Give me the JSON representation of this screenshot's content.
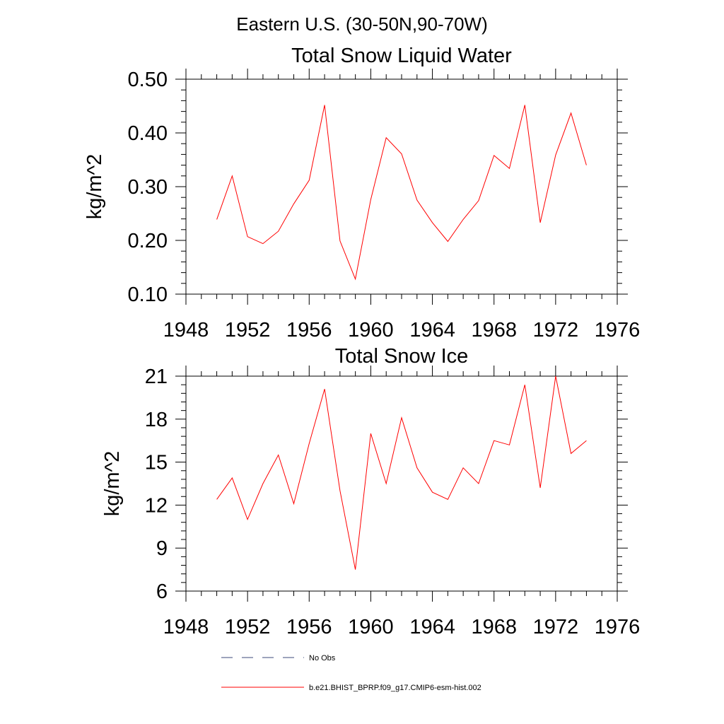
{
  "figure": {
    "suptitle": "Eastern U.S. (30-50N,90-70W)"
  },
  "chart_data": [
    {
      "type": "line",
      "title": "Total Snow Liquid Water",
      "xlabel": "",
      "ylabel": "kg/m^2",
      "xlim": [
        1948,
        1976
      ],
      "ylim": [
        0.1,
        0.5
      ],
      "xticks": [
        1948,
        1952,
        1956,
        1960,
        1964,
        1968,
        1972,
        1976
      ],
      "xtick_labels": [
        "1948",
        "1952",
        "1956",
        "1960",
        "1964",
        "1968",
        "1972",
        "1976"
      ],
      "yticks": [
        0.1,
        0.2,
        0.3,
        0.4,
        0.5
      ],
      "ytick_labels": [
        "0.10",
        "0.20",
        "0.30",
        "0.40",
        "0.50"
      ],
      "grid": false,
      "series": [
        {
          "name": "b.e21.BHIST_BPRP.f09_g17.CMIP6-esm-hist.002",
          "color": "#ff0000",
          "x": [
            1950,
            1951,
            1952,
            1953,
            1954,
            1955,
            1956,
            1957,
            1958,
            1959,
            1960,
            1961,
            1962,
            1963,
            1964,
            1965,
            1966,
            1967,
            1968,
            1969,
            1970,
            1971,
            1972,
            1973,
            1974
          ],
          "y": [
            0.239,
            0.32,
            0.207,
            0.194,
            0.217,
            0.268,
            0.312,
            0.452,
            0.199,
            0.128,
            0.276,
            0.391,
            0.361,
            0.275,
            0.233,
            0.198,
            0.239,
            0.274,
            0.358,
            0.334,
            0.452,
            0.233,
            0.359,
            0.437,
            0.34
          ]
        }
      ]
    },
    {
      "type": "line",
      "title": "Total Snow Ice",
      "xlabel": "",
      "ylabel": "kg/m^2",
      "xlim": [
        1948,
        1976
      ],
      "ylim": [
        6,
        21
      ],
      "xticks": [
        1948,
        1952,
        1956,
        1960,
        1964,
        1968,
        1972,
        1976
      ],
      "xtick_labels": [
        "1948",
        "1952",
        "1956",
        "1960",
        "1964",
        "1968",
        "1972",
        "1976"
      ],
      "yticks": [
        6,
        9,
        12,
        15,
        18,
        21
      ],
      "ytick_labels": [
        "6",
        "9",
        "12",
        "15",
        "18",
        "21"
      ],
      "grid": false,
      "series": [
        {
          "name": "b.e21.BHIST_BPRP.f09_g17.CMIP6-esm-hist.002",
          "color": "#ff0000",
          "x": [
            1950,
            1951,
            1952,
            1953,
            1954,
            1955,
            1956,
            1957,
            1958,
            1959,
            1960,
            1961,
            1962,
            1963,
            1964,
            1965,
            1966,
            1967,
            1968,
            1969,
            1970,
            1971,
            1972,
            1973,
            1974
          ],
          "y": [
            12.4,
            13.9,
            11.0,
            13.5,
            15.5,
            12.1,
            16.3,
            20.1,
            13.0,
            7.5,
            17.0,
            13.5,
            18.1,
            14.6,
            12.9,
            12.4,
            14.6,
            13.5,
            16.5,
            16.2,
            20.4,
            13.2,
            21.0,
            15.6,
            16.5
          ]
        }
      ]
    }
  ],
  "legend": {
    "placement": "bottom",
    "items": [
      {
        "label": "No Obs",
        "color": "#3b4a7a",
        "style": "dashed"
      },
      {
        "label": "b.e21.BHIST_BPRP.f09_g17.CMIP6-esm-hist.002",
        "color": "#ff0000",
        "style": "solid"
      }
    ]
  }
}
